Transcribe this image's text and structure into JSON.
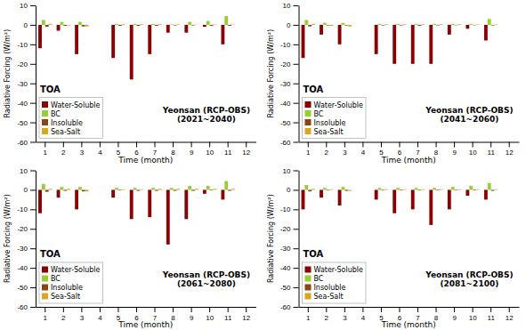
{
  "chart_data": [
    {
      "type": "bar",
      "title": "Yeonsan (RCP-OBS)\n(2021~2040)",
      "categories": [
        "1",
        "2",
        "3",
        "4",
        "5",
        "6",
        "7",
        "8",
        "9",
        "10",
        "11",
        "12"
      ],
      "series": [
        {
          "name": "Water-Soluble",
          "color": "#8B0000",
          "values": [
            -12,
            -3,
            -15,
            0,
            -17,
            -28,
            -15,
            -4,
            -4,
            -1,
            -10,
            0
          ]
        },
        {
          "name": "BC",
          "color": "#9ACD32",
          "values": [
            2.5,
            1.5,
            1.5,
            0,
            0.5,
            0.5,
            0.5,
            0.3,
            1.5,
            2,
            4.5,
            0
          ]
        },
        {
          "name": "Insoluble",
          "color": "#8B4513",
          "values": [
            -1.0,
            -0.5,
            -0.8,
            0,
            -0.5,
            -0.5,
            -0.5,
            -0.3,
            -0.3,
            -0.5,
            -0.5,
            0
          ]
        },
        {
          "name": "Sea-Salt",
          "color": "#DAA520",
          "values": [
            0.5,
            -0.3,
            -0.8,
            0,
            0.3,
            0.3,
            0.3,
            0.3,
            0.1,
            0.2,
            0.2,
            0
          ]
        }
      ],
      "xlabel": "Time (month)",
      "ylabel": "Radiative Forcing (W/m²)",
      "ylim": [
        -60,
        10
      ],
      "yticks": [
        10,
        0,
        -10,
        -20,
        -30,
        -40,
        -50,
        -60
      ],
      "annotations": [
        "TOA"
      ],
      "legend": "lower left",
      "grid": false
    },
    {
      "type": "bar",
      "title": "Yeonsan (RCP-OBS)\n(2041~2060)",
      "categories": [
        "1",
        "2",
        "3",
        "4",
        "5",
        "6",
        "7",
        "8",
        "9",
        "10",
        "11",
        "12"
      ],
      "series": [
        {
          "name": "Water-Soluble",
          "color": "#8B0000",
          "values": [
            -17,
            -5,
            -10,
            0,
            -15,
            -20,
            -20,
            -20,
            -5,
            -2,
            -8,
            0
          ]
        },
        {
          "name": "BC",
          "color": "#9ACD32",
          "values": [
            2.5,
            1,
            1,
            0,
            0.5,
            0.5,
            0.5,
            0.5,
            0.5,
            0.5,
            3,
            0
          ]
        },
        {
          "name": "Insoluble",
          "color": "#8B4513",
          "values": [
            -0.8,
            -0.3,
            -0.3,
            0,
            -0.3,
            -0.3,
            -0.5,
            -0.3,
            -0.2,
            -0.2,
            -0.3,
            0
          ]
        },
        {
          "name": "Sea-Salt",
          "color": "#DAA520",
          "values": [
            0.5,
            -0.5,
            -0.8,
            0,
            0.3,
            0.3,
            0.3,
            0.3,
            0.3,
            0.2,
            0.2,
            0
          ]
        }
      ],
      "xlabel": "Time (month)",
      "ylabel": "Radiative Forcing (W/m²)",
      "ylim": [
        -60,
        10
      ],
      "yticks": [
        10,
        0,
        -10,
        -20,
        -30,
        -40,
        -50,
        -60
      ],
      "annotations": [
        "TOA"
      ],
      "legend": "lower left",
      "grid": false
    },
    {
      "type": "bar",
      "title": "Yeonsan (RCP-OBS)\n(2061~2080)",
      "categories": [
        "1",
        "2",
        "3",
        "4",
        "5",
        "6",
        "7",
        "8",
        "9",
        "10",
        "11",
        "12"
      ],
      "series": [
        {
          "name": "Water-Soluble",
          "color": "#8B0000",
          "values": [
            -12,
            -4,
            -10,
            0,
            -4,
            -15,
            -14,
            -28,
            -15,
            -2,
            -5,
            0
          ]
        },
        {
          "name": "BC",
          "color": "#9ACD32",
          "values": [
            3,
            1.5,
            1.5,
            0,
            1,
            1,
            1,
            1,
            2,
            2,
            4.5,
            0
          ]
        },
        {
          "name": "Insoluble",
          "color": "#8B4513",
          "values": [
            -1.0,
            -0.5,
            -0.8,
            0,
            -0.3,
            -0.5,
            -0.5,
            -0.5,
            -0.5,
            -0.3,
            -0.5,
            0
          ]
        },
        {
          "name": "Sea-Salt",
          "color": "#DAA520",
          "values": [
            0.5,
            0.5,
            -0.8,
            0,
            0.3,
            0.3,
            0.5,
            0.5,
            0.5,
            0.5,
            0.5,
            0
          ]
        }
      ],
      "xlabel": "Time (month)",
      "ylabel": "Radiative Forcing (W/m²)",
      "ylim": [
        -60,
        10
      ],
      "yticks": [
        10,
        0,
        -10,
        -20,
        -30,
        -40,
        -50,
        -60
      ],
      "annotations": [
        "TOA"
      ],
      "legend": "lower left",
      "grid": false
    },
    {
      "type": "bar",
      "title": "Yeonsan (RCP-OBS)\n(2081~2100)",
      "categories": [
        "1",
        "2",
        "3",
        "4",
        "5",
        "6",
        "7",
        "8",
        "9",
        "10",
        "11",
        "12"
      ],
      "series": [
        {
          "name": "Water-Soluble",
          "color": "#8B0000",
          "values": [
            -10,
            -4,
            -8,
            0,
            -5,
            -12,
            -10,
            -18,
            -10,
            -3,
            -5,
            0
          ]
        },
        {
          "name": "BC",
          "color": "#9ACD32",
          "values": [
            2.5,
            1,
            1.5,
            0,
            1,
            1,
            1,
            1,
            1.5,
            2,
            3.5,
            0
          ]
        },
        {
          "name": "Insoluble",
          "color": "#8B4513",
          "values": [
            -0.8,
            -0.3,
            -0.5,
            0,
            -0.3,
            -0.3,
            -0.3,
            -0.3,
            -0.3,
            -0.3,
            -0.5,
            0
          ]
        },
        {
          "name": "Sea-Salt",
          "color": "#DAA520",
          "values": [
            0.5,
            0.3,
            -0.5,
            0,
            0.3,
            0.3,
            0.3,
            0.3,
            0.3,
            0.3,
            0.3,
            0
          ]
        }
      ],
      "xlabel": "Time (month)",
      "ylabel": "Radiative Forcing (W/m²)",
      "ylim": [
        -60,
        10
      ],
      "yticks": [
        10,
        0,
        -10,
        -20,
        -30,
        -40,
        -50,
        -60
      ],
      "annotations": [
        "TOA"
      ],
      "legend": "lower left",
      "grid": false
    }
  ]
}
